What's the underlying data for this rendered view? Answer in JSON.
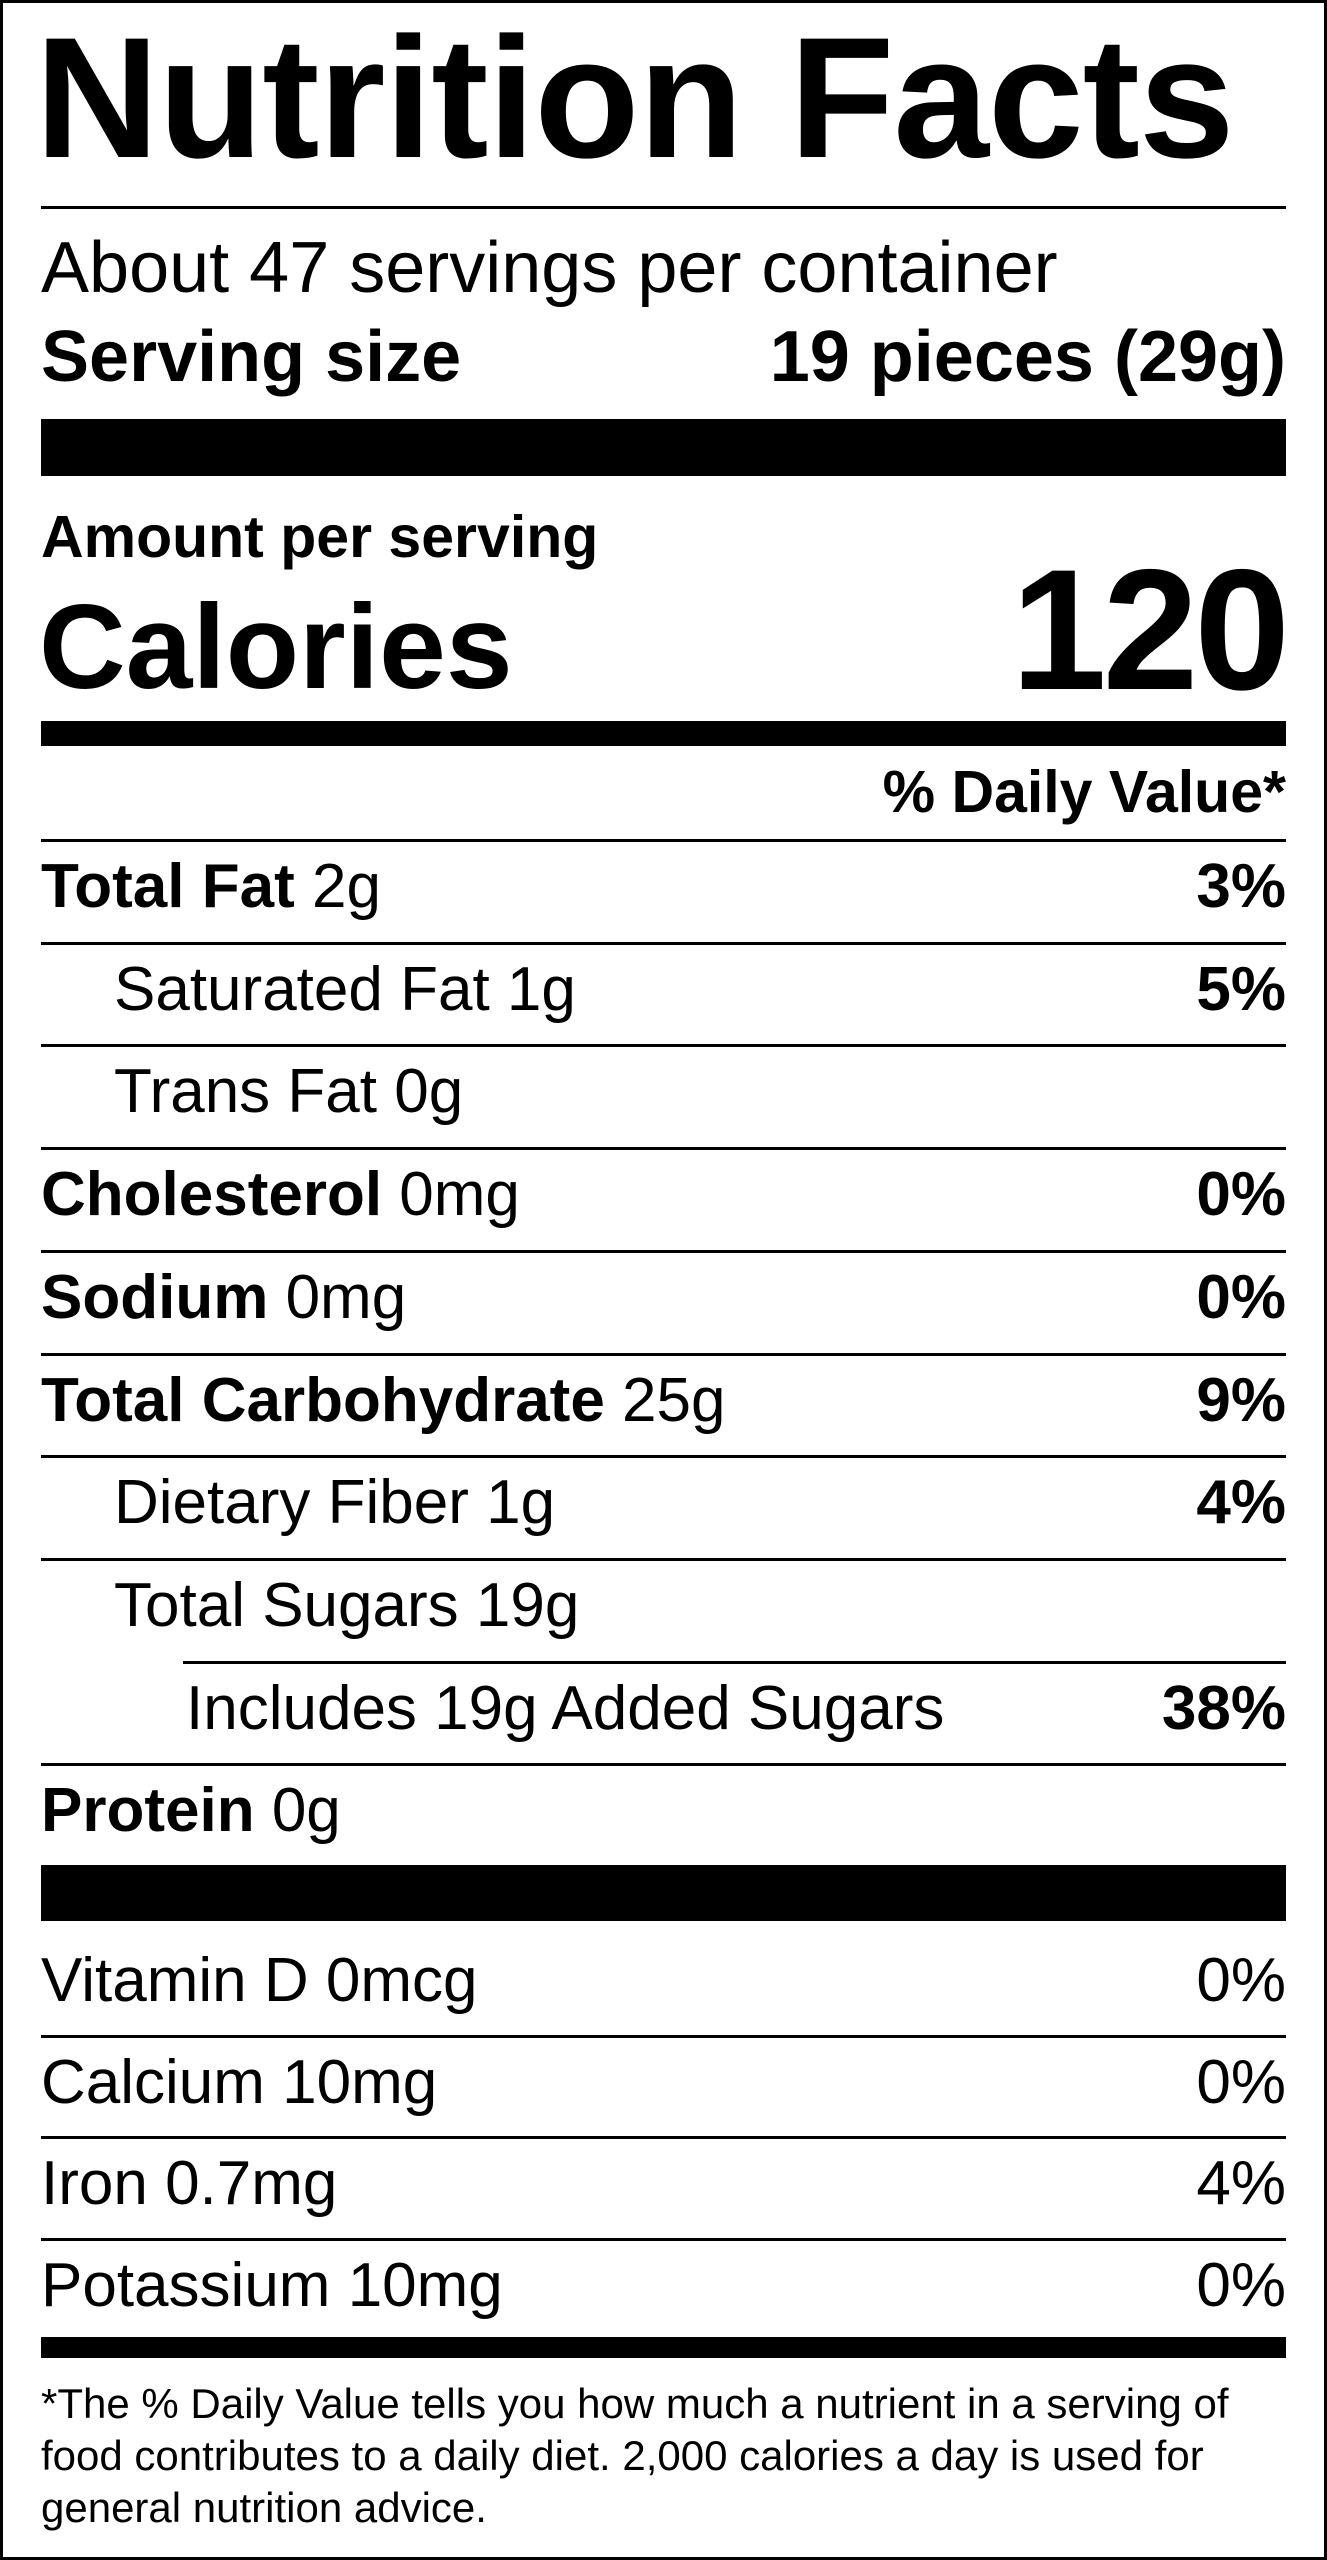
{
  "header": {
    "title": "Nutrition Facts",
    "servings": "About 47 servings per container",
    "serving_size_label": "Serving size",
    "serving_size": "19 pieces (29g)",
    "amount_per_serving": "Amount per serving",
    "calories_label": "Calories",
    "calories": 120,
    "daily_value_heading": "% Daily Value*"
  },
  "nutrients": [
    {
      "name": "Total Fat",
      "amount": "2g",
      "dv": "3%"
    },
    {
      "name": "Saturated Fat",
      "amount": "1g",
      "dv": "5%"
    },
    {
      "name": "Trans Fat",
      "amount": "0g"
    },
    {
      "name": "Cholesterol",
      "amount": "0mg",
      "dv": "0%"
    },
    {
      "name": "Sodium",
      "amount": "0mg",
      "dv": "0%"
    },
    {
      "name": "Total Carbohydrate",
      "amount": "25g",
      "dv": "9%"
    },
    {
      "name": "Dietary Fiber",
      "amount": "1g",
      "dv": "4%"
    },
    {
      "name": "Total Sugars",
      "amount": "19g"
    },
    {
      "name": "Includes 19g Added Sugars",
      "dv": "38%"
    },
    {
      "name": "Protein",
      "amount": "0g"
    }
  ],
  "vitamins": [
    {
      "name": "Vitamin D",
      "amount": "0mcg",
      "dv": "0%"
    },
    {
      "name": "Calcium",
      "amount": "10mg",
      "dv": "0%"
    },
    {
      "name": "Iron",
      "amount": "0.7mg",
      "dv": "4%"
    },
    {
      "name": "Potassium",
      "amount": "10mg",
      "dv": "0%"
    }
  ],
  "footnote": "*The % Daily Value tells you how much a nutrient in a serving of food contributes to a daily diet. 2,000 calories a day is used for general nutrition advice."
}
